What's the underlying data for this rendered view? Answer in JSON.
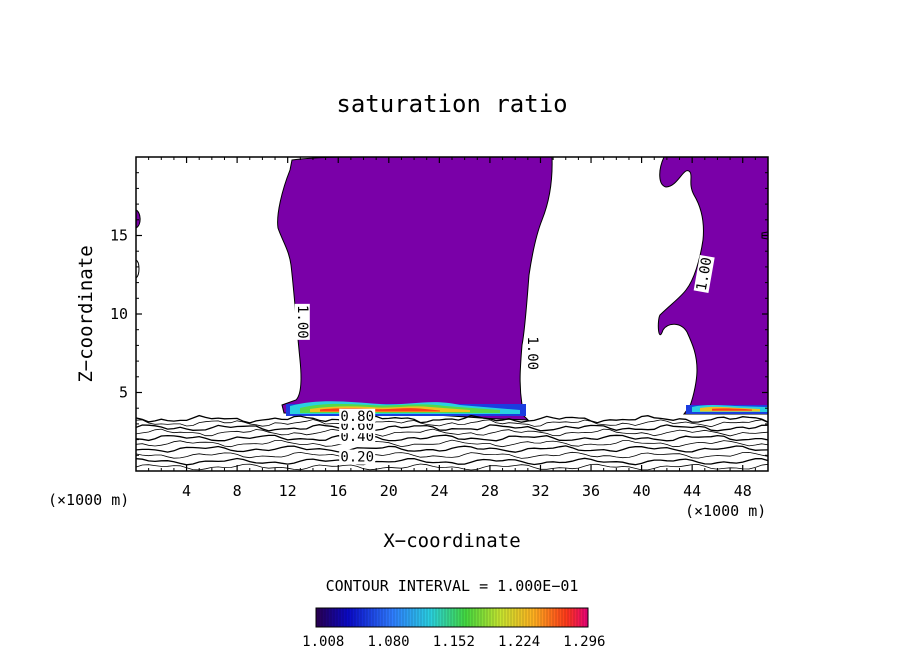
{
  "chart_data": {
    "type": "contour",
    "title": "saturation ratio",
    "xlabel": "X−coordinate",
    "ylabel": "Z−coordinate",
    "x_unit_left": "(×1000 m)",
    "x_unit_right": "(×1000 m)",
    "xlim": [
      0,
      50
    ],
    "ylim": [
      0,
      20
    ],
    "x_ticks": [
      4,
      8,
      12,
      16,
      20,
      24,
      28,
      32,
      36,
      40,
      44,
      48
    ],
    "y_ticks": [
      5,
      10,
      15
    ],
    "contour_interval_label": "CONTOUR INTERVAL = 1.000E−01",
    "contour_levels": [
      0.1,
      0.2,
      0.3,
      0.4,
      0.5,
      0.6,
      0.7,
      0.8,
      0.9,
      1.0
    ],
    "contour_labels": [
      {
        "text": "0.20",
        "x": 17.5,
        "y": 0.6
      },
      {
        "text": "0.40",
        "x": 17.5,
        "y": 1.9
      },
      {
        "text": "0.60",
        "x": 17.5,
        "y": 2.6
      },
      {
        "text": "0.80",
        "x": 17.5,
        "y": 3.2
      },
      {
        "text": "1.00",
        "x": 12.8,
        "y": 9.5,
        "rotate": 90
      },
      {
        "text": "1.00",
        "x": 31.0,
        "y": 7.5,
        "rotate": 90
      },
      {
        "text": "1.00",
        "x": 45.3,
        "y": 12.5,
        "rotate": -80
      }
    ],
    "shaded_regions": [
      {
        "name": "supersaturated-column-central",
        "x_range": [
          11.5,
          33.5
        ],
        "z_range": [
          3.5,
          20
        ]
      },
      {
        "name": "supersaturated-column-right",
        "x_range": [
          43,
          50
        ],
        "z_range": [
          3.8,
          20
        ]
      },
      {
        "name": "supersaturated-sliver-left",
        "x_range": [
          0,
          0.3
        ],
        "z_range": [
          10,
          16
        ]
      }
    ],
    "colorbar": {
      "ticks": [
        "1.008",
        "1.080",
        "1.152",
        "1.224",
        "1.296"
      ],
      "range": [
        1.0,
        1.3
      ]
    },
    "colors": {
      "fill": "#7a00a8",
      "background": "#ffffff"
    }
  }
}
